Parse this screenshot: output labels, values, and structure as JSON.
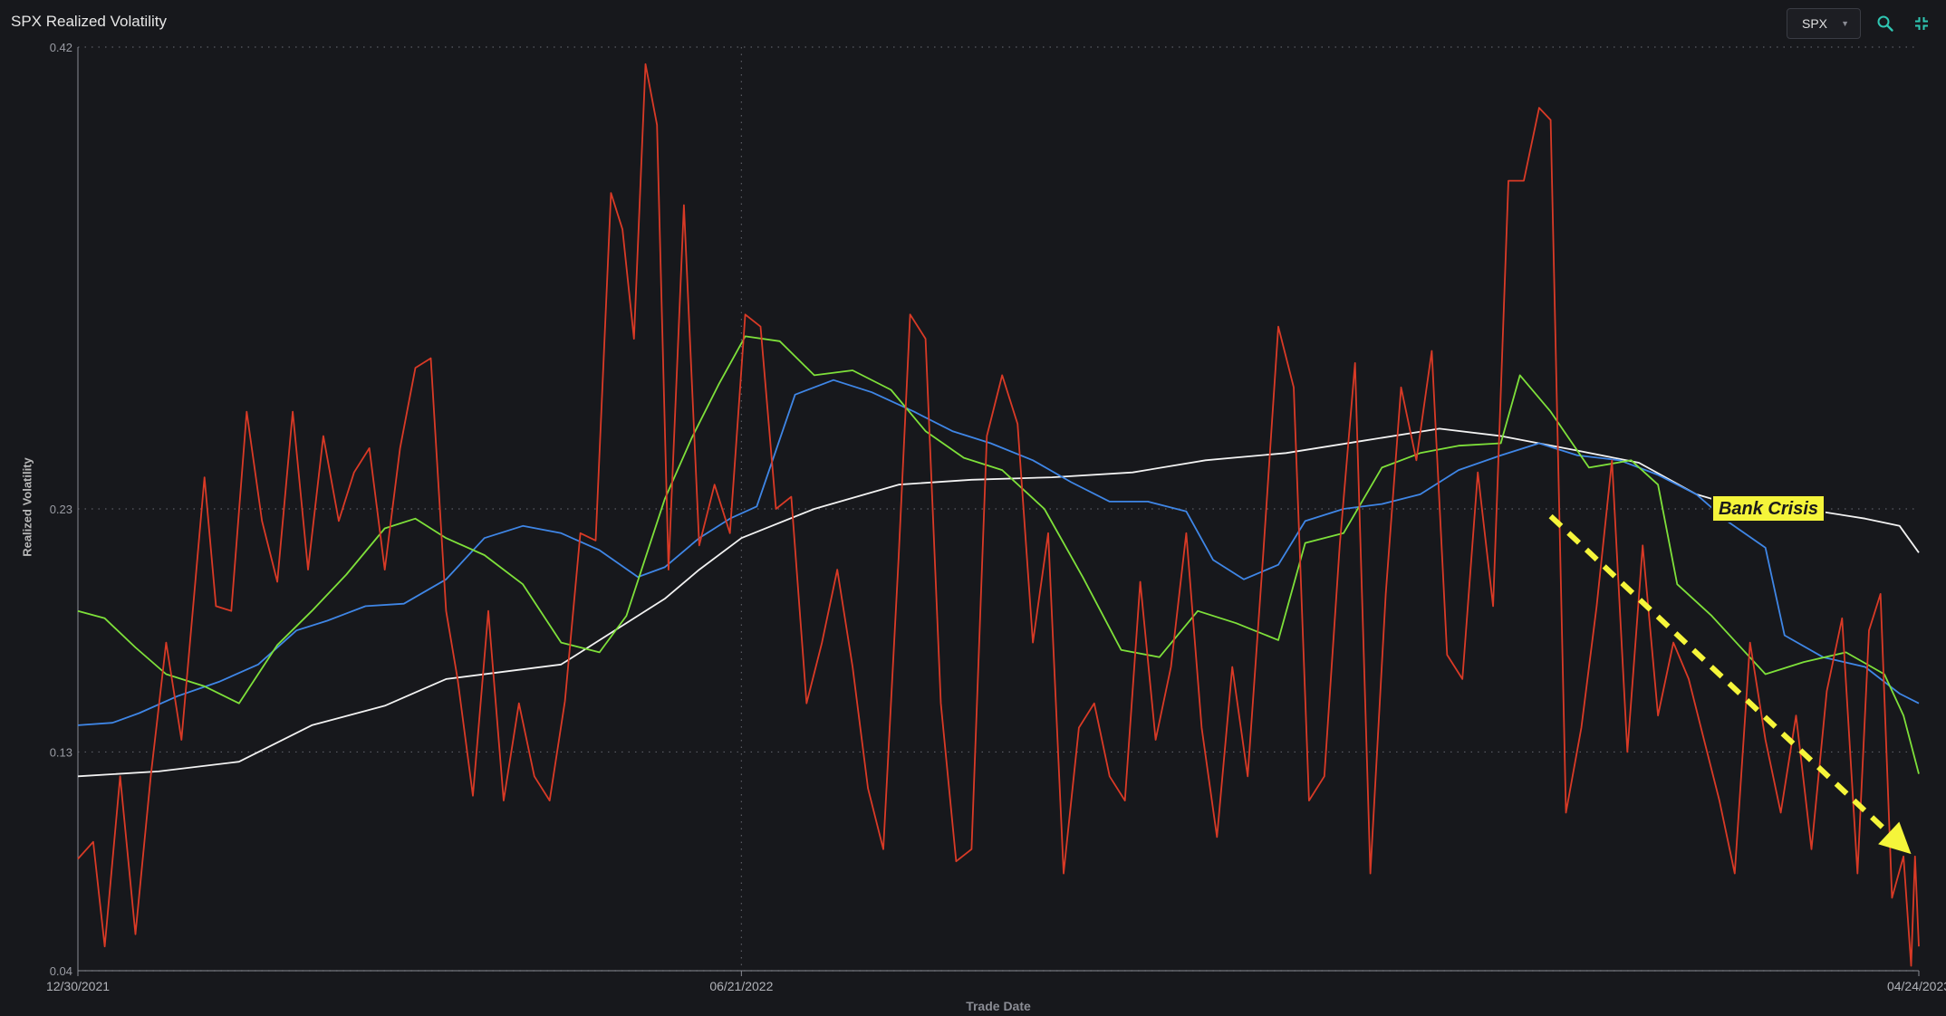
{
  "panel": {
    "title": "SPX Realized Volatility"
  },
  "toolbar": {
    "ticker_value": "SPX"
  },
  "colors": {
    "background": "#17181c",
    "grid": "#5a5c64",
    "series_red": "#d93a26",
    "series_green": "#7ee03a",
    "series_blue": "#3f86e6",
    "series_white": "#f2f2f2",
    "annotation": "#f5f53a"
  },
  "icons": {
    "search": "search-icon",
    "collapse": "collapse-icon",
    "caret": "caret-down-icon"
  },
  "chart_data": {
    "type": "line",
    "ylabel": "Realized Volatility",
    "xlabel": "Trade Date",
    "ylim": [
      0.04,
      0.42
    ],
    "yticks": [
      0.04,
      0.13,
      0.23,
      0.42
    ],
    "ytick_labels": [
      "0.04",
      "0.13",
      "0.23",
      "0.42"
    ],
    "xticks": [
      "12/30/2021",
      "06/21/2022",
      "04/24/2023"
    ],
    "x_range": [
      "2021-12-30",
      "2023-04-24"
    ],
    "grid": true,
    "annotation": {
      "text": "Bank Crisis",
      "arrow_from": [
        "2023-01-18",
        0.227
      ],
      "arrow_to": [
        "2023-04-22",
        0.088
      ]
    },
    "series": [
      {
        "color": "#f2f2f2",
        "points": [
          [
            "2021-12-30",
            0.12
          ],
          [
            "2022-01-20",
            0.122
          ],
          [
            "2022-02-10",
            0.126
          ],
          [
            "2022-03-01",
            0.141
          ],
          [
            "2022-03-20",
            0.149
          ],
          [
            "2022-04-05",
            0.16
          ],
          [
            "2022-04-20",
            0.163
          ],
          [
            "2022-05-05",
            0.166
          ],
          [
            "2022-05-20",
            0.181
          ],
          [
            "2022-06-01",
            0.193
          ],
          [
            "2022-06-10",
            0.205
          ],
          [
            "2022-06-21",
            0.218
          ],
          [
            "2022-07-10",
            0.23
          ],
          [
            "2022-08-01",
            0.24
          ],
          [
            "2022-08-20",
            0.242
          ],
          [
            "2022-09-10",
            0.243
          ],
          [
            "2022-10-01",
            0.245
          ],
          [
            "2022-10-20",
            0.25
          ],
          [
            "2022-11-10",
            0.253
          ],
          [
            "2022-11-30",
            0.258
          ],
          [
            "2022-12-20",
            0.263
          ],
          [
            "2023-01-05",
            0.26
          ],
          [
            "2023-01-25",
            0.254
          ],
          [
            "2023-02-10",
            0.249
          ],
          [
            "2023-02-25",
            0.236
          ],
          [
            "2023-03-10",
            0.23
          ],
          [
            "2023-03-25",
            0.23
          ],
          [
            "2023-04-10",
            0.226
          ],
          [
            "2023-04-19",
            0.223
          ],
          [
            "2023-04-24",
            0.212
          ]
        ]
      },
      {
        "color": "#3f86e6",
        "points": [
          [
            "2021-12-30",
            0.141
          ],
          [
            "2022-01-08",
            0.142
          ],
          [
            "2022-01-15",
            0.146
          ],
          [
            "2022-01-25",
            0.153
          ],
          [
            "2022-02-05",
            0.159
          ],
          [
            "2022-02-15",
            0.166
          ],
          [
            "2022-02-25",
            0.18
          ],
          [
            "2022-03-05",
            0.184
          ],
          [
            "2022-03-15",
            0.19
          ],
          [
            "2022-03-25",
            0.191
          ],
          [
            "2022-04-05",
            0.201
          ],
          [
            "2022-04-15",
            0.218
          ],
          [
            "2022-04-25",
            0.223
          ],
          [
            "2022-05-05",
            0.22
          ],
          [
            "2022-05-15",
            0.213
          ],
          [
            "2022-05-25",
            0.202
          ],
          [
            "2022-06-01",
            0.206
          ],
          [
            "2022-06-10",
            0.218
          ],
          [
            "2022-06-18",
            0.226
          ],
          [
            "2022-06-25",
            0.231
          ],
          [
            "2022-07-05",
            0.277
          ],
          [
            "2022-07-15",
            0.283
          ],
          [
            "2022-07-25",
            0.278
          ],
          [
            "2022-08-05",
            0.27
          ],
          [
            "2022-08-15",
            0.262
          ],
          [
            "2022-08-25",
            0.257
          ],
          [
            "2022-09-05",
            0.25
          ],
          [
            "2022-09-15",
            0.241
          ],
          [
            "2022-09-25",
            0.233
          ],
          [
            "2022-10-05",
            0.233
          ],
          [
            "2022-10-15",
            0.229
          ],
          [
            "2022-10-22",
            0.209
          ],
          [
            "2022-10-30",
            0.201
          ],
          [
            "2022-11-08",
            0.207
          ],
          [
            "2022-11-15",
            0.225
          ],
          [
            "2022-11-25",
            0.23
          ],
          [
            "2022-12-05",
            0.232
          ],
          [
            "2022-12-15",
            0.236
          ],
          [
            "2022-12-25",
            0.246
          ],
          [
            "2023-01-05",
            0.252
          ],
          [
            "2023-01-15",
            0.257
          ],
          [
            "2023-01-25",
            0.252
          ],
          [
            "2023-02-05",
            0.25
          ],
          [
            "2023-02-15",
            0.244
          ],
          [
            "2023-02-25",
            0.236
          ],
          [
            "2023-03-05",
            0.225
          ],
          [
            "2023-03-15",
            0.214
          ],
          [
            "2023-03-20",
            0.178
          ],
          [
            "2023-03-30",
            0.169
          ],
          [
            "2023-04-10",
            0.165
          ],
          [
            "2023-04-19",
            0.154
          ],
          [
            "2023-04-24",
            0.15
          ]
        ]
      },
      {
        "color": "#7ee03a",
        "points": [
          [
            "2021-12-30",
            0.188
          ],
          [
            "2022-01-06",
            0.185
          ],
          [
            "2022-01-14",
            0.173
          ],
          [
            "2022-01-22",
            0.162
          ],
          [
            "2022-02-01",
            0.157
          ],
          [
            "2022-02-10",
            0.15
          ],
          [
            "2022-02-20",
            0.174
          ],
          [
            "2022-03-01",
            0.188
          ],
          [
            "2022-03-10",
            0.203
          ],
          [
            "2022-03-20",
            0.222
          ],
          [
            "2022-03-28",
            0.226
          ],
          [
            "2022-04-05",
            0.218
          ],
          [
            "2022-04-15",
            0.211
          ],
          [
            "2022-04-25",
            0.199
          ],
          [
            "2022-05-05",
            0.175
          ],
          [
            "2022-05-15",
            0.171
          ],
          [
            "2022-05-22",
            0.186
          ],
          [
            "2022-06-01",
            0.234
          ],
          [
            "2022-06-08",
            0.259
          ],
          [
            "2022-06-15",
            0.281
          ],
          [
            "2022-06-22",
            0.301
          ],
          [
            "2022-07-01",
            0.299
          ],
          [
            "2022-07-10",
            0.285
          ],
          [
            "2022-07-20",
            0.287
          ],
          [
            "2022-07-30",
            0.279
          ],
          [
            "2022-08-08",
            0.262
          ],
          [
            "2022-08-18",
            0.251
          ],
          [
            "2022-08-28",
            0.246
          ],
          [
            "2022-09-08",
            0.23
          ],
          [
            "2022-09-18",
            0.202
          ],
          [
            "2022-09-28",
            0.172
          ],
          [
            "2022-10-08",
            0.169
          ],
          [
            "2022-10-18",
            0.188
          ],
          [
            "2022-10-28",
            0.183
          ],
          [
            "2022-11-08",
            0.176
          ],
          [
            "2022-11-15",
            0.216
          ],
          [
            "2022-11-25",
            0.22
          ],
          [
            "2022-12-05",
            0.247
          ],
          [
            "2022-12-15",
            0.253
          ],
          [
            "2022-12-25",
            0.256
          ],
          [
            "2023-01-05",
            0.257
          ],
          [
            "2023-01-10",
            0.285
          ],
          [
            "2023-01-18",
            0.27
          ],
          [
            "2023-01-28",
            0.247
          ],
          [
            "2023-02-08",
            0.25
          ],
          [
            "2023-02-15",
            0.24
          ],
          [
            "2023-02-20",
            0.199
          ],
          [
            "2023-03-01",
            0.186
          ],
          [
            "2023-03-08",
            0.174
          ],
          [
            "2023-03-15",
            0.162
          ],
          [
            "2023-03-25",
            0.167
          ],
          [
            "2023-04-05",
            0.171
          ],
          [
            "2023-04-15",
            0.162
          ],
          [
            "2023-04-20",
            0.145
          ],
          [
            "2023-04-24",
            0.121
          ]
        ]
      },
      {
        "color": "#d93a26",
        "points": [
          [
            "2021-12-30",
            0.086
          ],
          [
            "2022-01-03",
            0.093
          ],
          [
            "2022-01-06",
            0.05
          ],
          [
            "2022-01-10",
            0.12
          ],
          [
            "2022-01-14",
            0.055
          ],
          [
            "2022-01-18",
            0.12
          ],
          [
            "2022-01-22",
            0.175
          ],
          [
            "2022-01-26",
            0.135
          ],
          [
            "2022-02-01",
            0.243
          ],
          [
            "2022-02-04",
            0.19
          ],
          [
            "2022-02-08",
            0.188
          ],
          [
            "2022-02-12",
            0.27
          ],
          [
            "2022-02-16",
            0.225
          ],
          [
            "2022-02-20",
            0.2
          ],
          [
            "2022-02-24",
            0.27
          ],
          [
            "2022-02-28",
            0.205
          ],
          [
            "2022-03-04",
            0.26
          ],
          [
            "2022-03-08",
            0.225
          ],
          [
            "2022-03-12",
            0.245
          ],
          [
            "2022-03-16",
            0.255
          ],
          [
            "2022-03-20",
            0.205
          ],
          [
            "2022-03-24",
            0.255
          ],
          [
            "2022-03-28",
            0.288
          ],
          [
            "2022-04-01",
            0.292
          ],
          [
            "2022-04-05",
            0.188
          ],
          [
            "2022-04-08",
            0.16
          ],
          [
            "2022-04-12",
            0.112
          ],
          [
            "2022-04-16",
            0.188
          ],
          [
            "2022-04-20",
            0.11
          ],
          [
            "2022-04-24",
            0.15
          ],
          [
            "2022-04-28",
            0.12
          ],
          [
            "2022-05-02",
            0.11
          ],
          [
            "2022-05-06",
            0.151
          ],
          [
            "2022-05-10",
            0.22
          ],
          [
            "2022-05-14",
            0.217
          ],
          [
            "2022-05-18",
            0.36
          ],
          [
            "2022-05-21",
            0.345
          ],
          [
            "2022-05-24",
            0.3
          ],
          [
            "2022-05-27",
            0.413
          ],
          [
            "2022-05-30",
            0.388
          ],
          [
            "2022-06-02",
            0.205
          ],
          [
            "2022-06-06",
            0.355
          ],
          [
            "2022-06-10",
            0.215
          ],
          [
            "2022-06-14",
            0.24
          ],
          [
            "2022-06-18",
            0.22
          ],
          [
            "2022-06-22",
            0.31
          ],
          [
            "2022-06-26",
            0.305
          ],
          [
            "2022-06-30",
            0.23
          ],
          [
            "2022-07-04",
            0.235
          ],
          [
            "2022-07-08",
            0.15
          ],
          [
            "2022-07-12",
            0.175
          ],
          [
            "2022-07-16",
            0.205
          ],
          [
            "2022-07-20",
            0.165
          ],
          [
            "2022-07-24",
            0.115
          ],
          [
            "2022-07-28",
            0.09
          ],
          [
            "2022-08-01",
            0.21
          ],
          [
            "2022-08-04",
            0.31
          ],
          [
            "2022-08-08",
            0.3
          ],
          [
            "2022-08-12",
            0.15
          ],
          [
            "2022-08-16",
            0.085
          ],
          [
            "2022-08-20",
            0.09
          ],
          [
            "2022-08-24",
            0.26
          ],
          [
            "2022-08-28",
            0.285
          ],
          [
            "2022-09-01",
            0.265
          ],
          [
            "2022-09-05",
            0.175
          ],
          [
            "2022-09-09",
            0.22
          ],
          [
            "2022-09-13",
            0.08
          ],
          [
            "2022-09-17",
            0.14
          ],
          [
            "2022-09-21",
            0.15
          ],
          [
            "2022-09-25",
            0.12
          ],
          [
            "2022-09-29",
            0.11
          ],
          [
            "2022-10-03",
            0.2
          ],
          [
            "2022-10-07",
            0.135
          ],
          [
            "2022-10-11",
            0.165
          ],
          [
            "2022-10-15",
            0.22
          ],
          [
            "2022-10-19",
            0.14
          ],
          [
            "2022-10-23",
            0.095
          ],
          [
            "2022-10-27",
            0.165
          ],
          [
            "2022-10-31",
            0.12
          ],
          [
            "2022-11-04",
            0.21
          ],
          [
            "2022-11-08",
            0.305
          ],
          [
            "2022-11-12",
            0.28
          ],
          [
            "2022-11-16",
            0.11
          ],
          [
            "2022-11-20",
            0.12
          ],
          [
            "2022-11-24",
            0.215
          ],
          [
            "2022-11-28",
            0.29
          ],
          [
            "2022-12-02",
            0.08
          ],
          [
            "2022-12-06",
            0.195
          ],
          [
            "2022-12-10",
            0.28
          ],
          [
            "2022-12-14",
            0.25
          ],
          [
            "2022-12-18",
            0.295
          ],
          [
            "2022-12-22",
            0.17
          ],
          [
            "2022-12-26",
            0.16
          ],
          [
            "2022-12-30",
            0.245
          ],
          [
            "2023-01-03",
            0.19
          ],
          [
            "2023-01-07",
            0.365
          ],
          [
            "2023-01-11",
            0.365
          ],
          [
            "2023-01-15",
            0.395
          ],
          [
            "2023-01-18",
            0.39
          ],
          [
            "2023-01-22",
            0.105
          ],
          [
            "2023-01-26",
            0.14
          ],
          [
            "2023-01-30",
            0.19
          ],
          [
            "2023-02-03",
            0.25
          ],
          [
            "2023-02-07",
            0.13
          ],
          [
            "2023-02-11",
            0.215
          ],
          [
            "2023-02-15",
            0.145
          ],
          [
            "2023-02-19",
            0.175
          ],
          [
            "2023-02-23",
            0.16
          ],
          [
            "2023-02-27",
            0.135
          ],
          [
            "2023-03-03",
            0.11
          ],
          [
            "2023-03-07",
            0.08
          ],
          [
            "2023-03-11",
            0.175
          ],
          [
            "2023-03-15",
            0.135
          ],
          [
            "2023-03-19",
            0.105
          ],
          [
            "2023-03-23",
            0.145
          ],
          [
            "2023-03-27",
            0.09
          ],
          [
            "2023-03-31",
            0.155
          ],
          [
            "2023-04-04",
            0.185
          ],
          [
            "2023-04-08",
            0.08
          ],
          [
            "2023-04-11",
            0.18
          ],
          [
            "2023-04-14",
            0.195
          ],
          [
            "2023-04-17",
            0.07
          ],
          [
            "2023-04-20",
            0.087
          ],
          [
            "2023-04-22",
            0.042
          ],
          [
            "2023-04-23",
            0.087
          ],
          [
            "2023-04-24",
            0.05
          ]
        ]
      }
    ]
  }
}
